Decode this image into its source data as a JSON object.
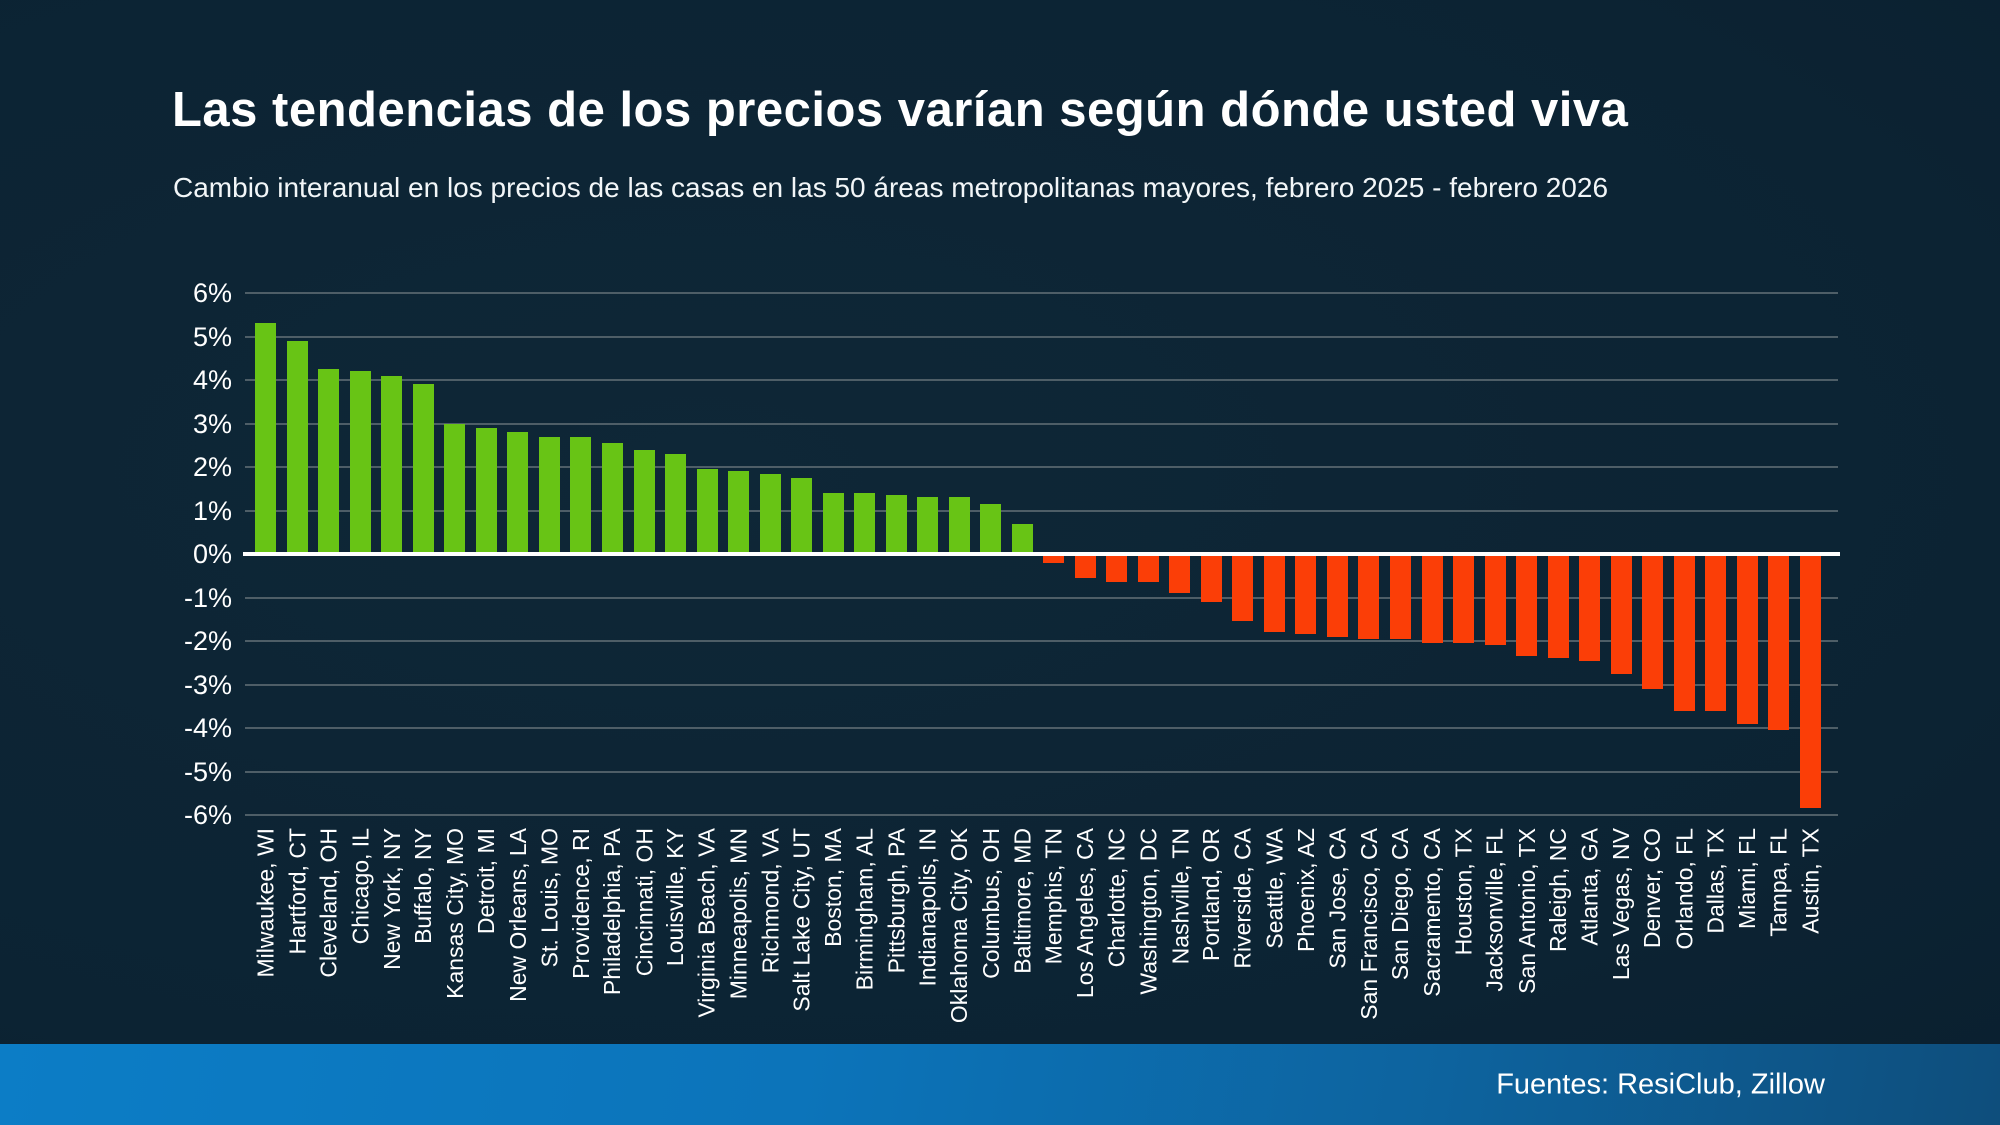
{
  "header": {
    "title": "Las tendencias de los precios varían según dónde usted viva",
    "subtitle": "Cambio interanual en los precios de las casas en las 50 áreas metropolitanas mayores, febrero 2025 - febrero 2026"
  },
  "footer": {
    "source": "Fuentes: ResiClub, Zillow"
  },
  "chart_data": {
    "type": "bar",
    "title": "Las tendencias de los precios varían según dónde usted viva",
    "subtitle": "Cambio interanual en los precios de las casas en las 50 áreas metropolitanas mayores, febrero 2025 - febrero 2026",
    "xlabel": "",
    "ylabel": "",
    "ylim": [
      -6,
      6
    ],
    "grid": true,
    "yticks": [
      6,
      5,
      4,
      3,
      2,
      1,
      0,
      -1,
      -2,
      -3,
      -4,
      -5,
      -6
    ],
    "ytick_labels": [
      "6%",
      "5%",
      "4%",
      "3%",
      "2%",
      "1%",
      "0%",
      "-1%",
      "-2%",
      "-3%",
      "-4%",
      "-5%",
      "-6%"
    ],
    "positive_color": "#68c415",
    "negative_color": "#fb3e07",
    "zero_line_color": "#ffffff",
    "gridline_color": "#4e5e67",
    "categories": [
      "Milwaukee, WI",
      "Hartford, CT",
      "Cleveland, OH",
      "Chicago, IL",
      "New York, NY",
      "Buffalo, NY",
      "Kansas City, MO",
      "Detroit, MI",
      "New Orleans, LA",
      "St. Louis, MO",
      "Providence, RI",
      "Philadelphia, PA",
      "Cincinnati, OH",
      "Louisville, KY",
      "Virginia Beach, VA",
      "Minneapolis, MN",
      "Richmond, VA",
      "Salt Lake City, UT",
      "Boston, MA",
      "Birmingham, AL",
      "Pittsburgh, PA",
      "Indianapolis, IN",
      "Oklahoma City, OK",
      "Columbus, OH",
      "Baltimore, MD",
      "Memphis, TN",
      "Los Angeles, CA",
      "Charlotte, NC",
      "Washington, DC",
      "Nashville, TN",
      "Portland, OR",
      "Riverside, CA",
      "Seattle, WA",
      "Phoenix, AZ",
      "San Jose, CA",
      "San Francisco, CA",
      "San Diego, CA",
      "Sacramento, CA",
      "Houston, TX",
      "Jacksonville, FL",
      "San Antonio, TX",
      "Raleigh, NC",
      "Atlanta, GA",
      "Las Vegas, NV",
      "Denver, CO",
      "Orlando, FL",
      "Dallas, TX",
      "Miami, FL",
      "Tampa, FL",
      "Austin, TX"
    ],
    "values": [
      5.3,
      4.9,
      4.25,
      4.2,
      4.1,
      3.9,
      3.0,
      2.9,
      2.8,
      2.7,
      2.7,
      2.55,
      2.4,
      2.3,
      1.95,
      1.9,
      1.85,
      1.75,
      1.4,
      1.4,
      1.35,
      1.3,
      1.3,
      1.15,
      0.7,
      -0.2,
      -0.55,
      -0.65,
      -0.65,
      -0.9,
      -1.1,
      -1.55,
      -1.8,
      -1.85,
      -1.9,
      -1.95,
      -1.95,
      -2.05,
      -2.05,
      -2.1,
      -2.35,
      -2.4,
      -2.45,
      -2.75,
      -3.1,
      -3.6,
      -3.6,
      -3.9,
      -4.05,
      -5.85
    ]
  }
}
